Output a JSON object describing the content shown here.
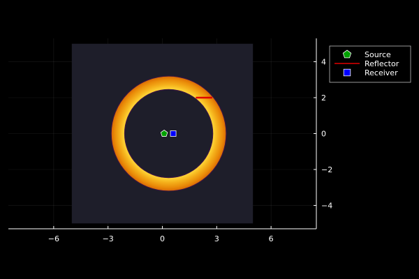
{
  "chart_data": {
    "type": "scatter",
    "title": "",
    "xlabel": "",
    "ylabel": "",
    "xlim": [
      -8.5,
      8.5
    ],
    "ylim": [
      -5.3,
      5.3
    ],
    "xticks": [
      -6,
      -3,
      0,
      3,
      6
    ],
    "xtick_labels": [
      "−6",
      "−3",
      "0",
      "3",
      "6"
    ],
    "yticks": [
      -4,
      -2,
      0,
      2,
      4
    ],
    "ytick_labels": [
      "−4",
      "−2",
      "0",
      "2",
      "4"
    ],
    "grid": true,
    "y_axis_side": "right",
    "legend_position": "top-right",
    "background_field": {
      "x_range": [
        -5,
        5
      ],
      "y_range": [
        -5,
        5
      ],
      "color": "#1e1e2a",
      "ring": {
        "center": [
          0.35,
          0
        ],
        "inner_radius": 2.45,
        "outer_radius": 3.2,
        "colors": [
          "#ffd93a",
          "#f5b21c",
          "#e98a08",
          "#d86806"
        ]
      }
    },
    "series": [
      {
        "name": "Source",
        "marker": "pentagon",
        "color": "#00a000",
        "x": [
          0.1
        ],
        "y": [
          0.0
        ]
      },
      {
        "name": "Reflector",
        "marker": "line",
        "color": "#e00000",
        "x": [
          1.85,
          2.75
        ],
        "y": [
          2.0,
          2.0
        ]
      },
      {
        "name": "Receiver",
        "marker": "square",
        "color": "#0000ff",
        "x": [
          0.6
        ],
        "y": [
          0.0
        ]
      }
    ]
  }
}
